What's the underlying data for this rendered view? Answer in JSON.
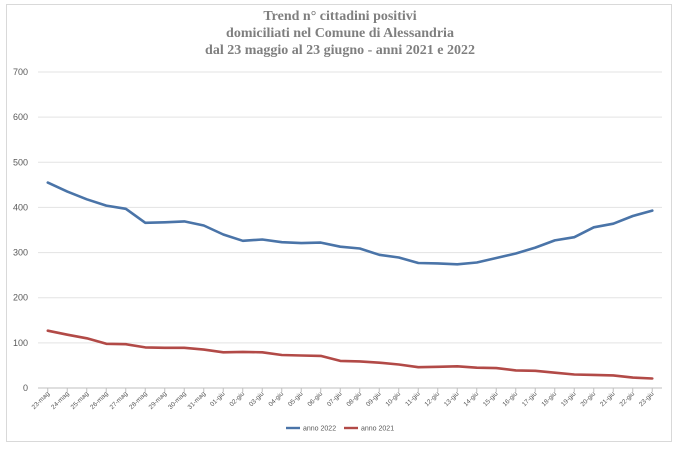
{
  "chart_data": {
    "type": "line",
    "title_lines": [
      "Trend n° cittadini positivi",
      "domiciliati nel Comune di Alessandria",
      "dal 23 maggio al 23 giugno - anni 2021 e 2022"
    ],
    "categories": [
      "23-mag",
      "24-mag",
      "25-mag",
      "26-mag",
      "27-mag",
      "28-mag",
      "29-mag",
      "30-mag",
      "31-mag",
      "01-giu",
      "02-giu",
      "03-giu",
      "04-giu",
      "05-giu",
      "06-giu",
      "07-giu",
      "08-giu",
      "09-giu",
      "10-giu",
      "11-giu",
      "12-giu",
      "13-giu",
      "14-giu",
      "15-giu",
      "16-giu",
      "17-giu",
      "18-giu",
      "19-giu",
      "20-giu",
      "21-giu",
      "22-giu",
      "23-giu"
    ],
    "series": [
      {
        "name": "anno 2022",
        "color": "#4a74a8",
        "values": [
          455,
          435,
          418,
          404,
          397,
          366,
          367,
          369,
          360,
          340,
          326,
          329,
          323,
          321,
          322,
          313,
          309,
          295,
          289,
          277,
          276,
          274,
          278,
          288,
          298,
          311,
          327,
          334,
          356,
          364,
          381,
          393
        ]
      },
      {
        "name": "anno 2021",
        "color": "#b24a47",
        "values": [
          127,
          118,
          110,
          98,
          97,
          90,
          89,
          89,
          85,
          79,
          80,
          79,
          73,
          72,
          71,
          60,
          59,
          56,
          52,
          46,
          47,
          48,
          45,
          44,
          39,
          38,
          34,
          30,
          29,
          28,
          23,
          21
        ]
      }
    ],
    "ylim": [
      0,
      700
    ],
    "yticks": [
      0,
      100,
      200,
      300,
      400,
      500,
      600,
      700
    ],
    "grid": true,
    "legend_position": "bottom"
  }
}
